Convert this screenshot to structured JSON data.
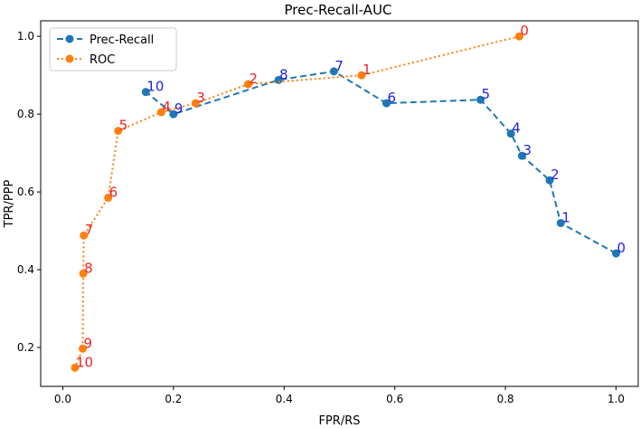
{
  "chart_data": {
    "type": "line",
    "title": "Prec-Recall-AUC",
    "xlabel": "FPR/RS",
    "ylabel": "TPR/PPP",
    "xlim": [
      -0.04,
      1.04
    ],
    "ylim": [
      0.1,
      1.04
    ],
    "xticks": [
      0.0,
      0.2,
      0.4,
      0.6,
      0.8,
      1.0
    ],
    "xtick_labels": [
      "0.0",
      "0.2",
      "0.4",
      "0.6",
      "0.8",
      "1.0"
    ],
    "yticks": [
      0.2,
      0.4,
      0.6,
      0.8,
      1.0
    ],
    "ytick_labels": [
      "0.2",
      "0.4",
      "0.6",
      "0.8",
      "1.0"
    ],
    "legend_position": "top-left",
    "series": [
      {
        "name": "Prec-Recall",
        "color": "#1f77b4",
        "label_color": "#1f1fe0",
        "linestyle": "dashed",
        "x": [
          1.0,
          0.9,
          0.88,
          0.83,
          0.81,
          0.755,
          0.585,
          0.49,
          0.39,
          0.2,
          0.15
        ],
        "y": [
          0.442,
          0.52,
          0.63,
          0.693,
          0.75,
          0.837,
          0.828,
          0.91,
          0.888,
          0.8,
          0.857
        ],
        "point_labels": [
          "0",
          "1",
          "2",
          "3",
          "4",
          "5",
          "6",
          "7",
          "8",
          "9",
          "10"
        ]
      },
      {
        "name": "ROC",
        "color": "#ff7f0e",
        "label_color": "#ee2222",
        "linestyle": "dotted",
        "x": [
          0.825,
          0.54,
          0.335,
          0.24,
          0.178,
          0.1,
          0.082,
          0.038,
          0.037,
          0.036,
          0.022
        ],
        "y": [
          1.0,
          0.9,
          0.877,
          0.828,
          0.805,
          0.757,
          0.585,
          0.488,
          0.39,
          0.197,
          0.148
        ],
        "point_labels": [
          "0",
          "1",
          "2",
          "3",
          "4",
          "5",
          "6",
          "7",
          "8",
          "9",
          "10"
        ]
      }
    ]
  }
}
